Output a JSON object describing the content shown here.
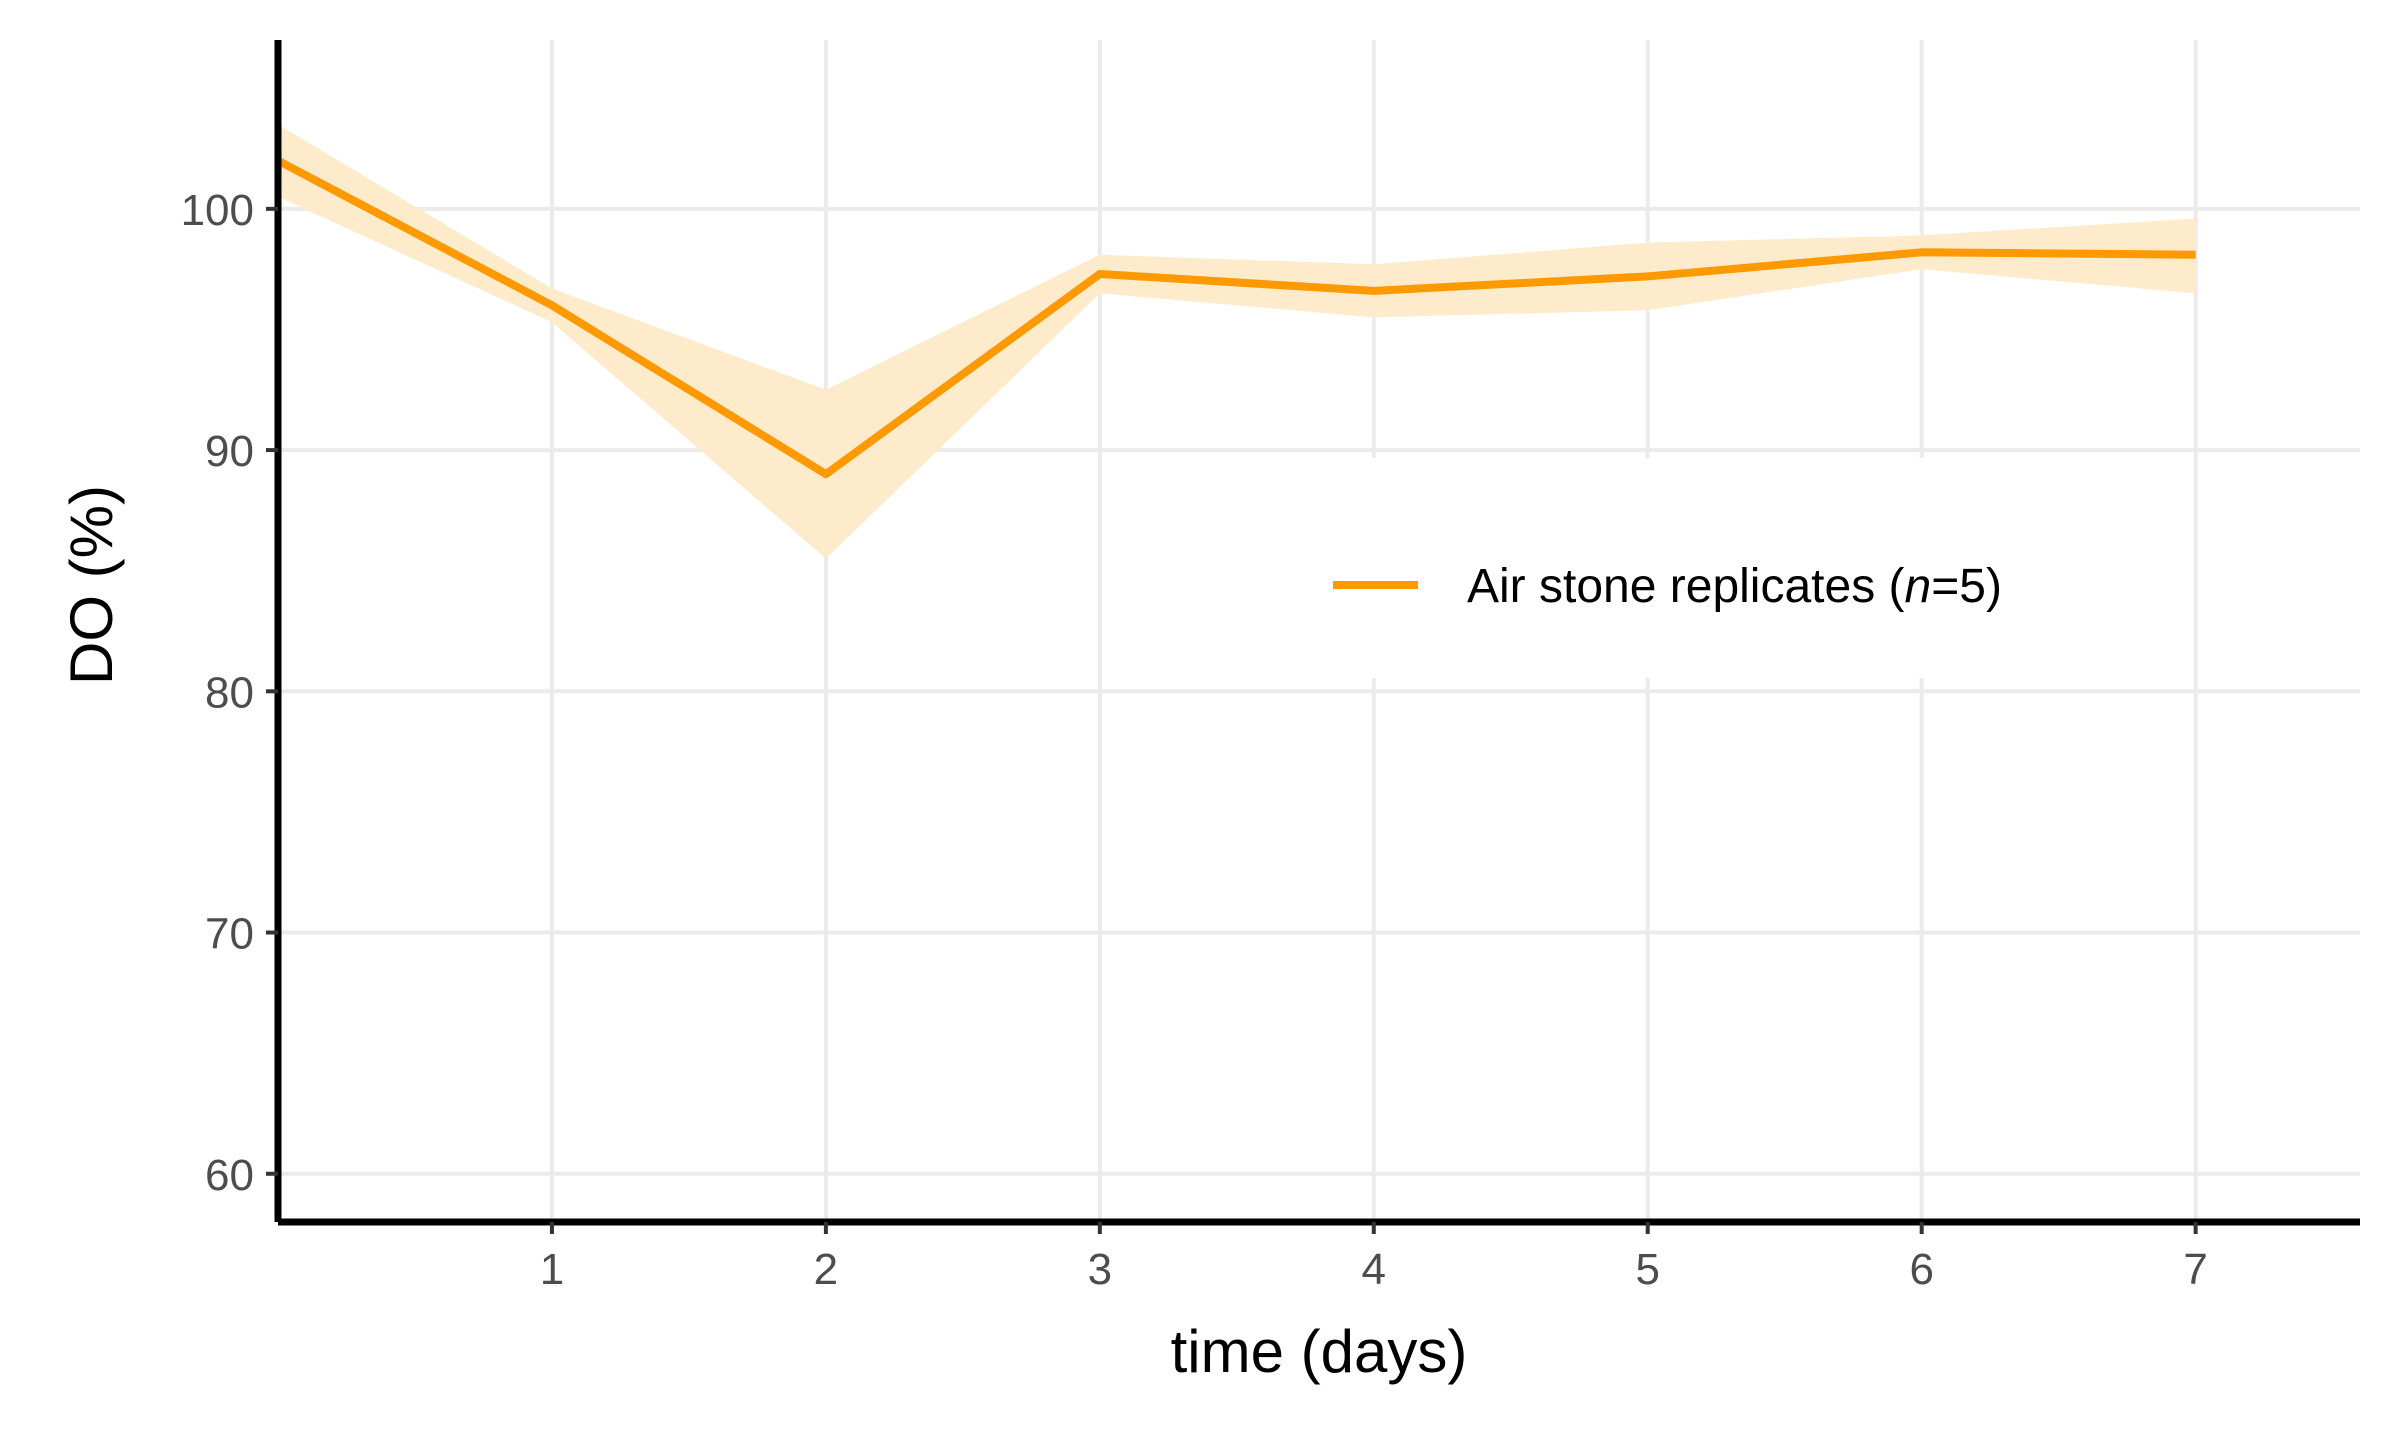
{
  "chart_data": {
    "type": "line",
    "title": "",
    "xlabel": "time (days)",
    "ylabel": "DO (%)",
    "xlim": [
      0,
      7.6
    ],
    "ylim": [
      58,
      107
    ],
    "x_ticks": [
      1,
      2,
      3,
      4,
      5,
      6,
      7
    ],
    "y_ticks": [
      60,
      70,
      80,
      90,
      100
    ],
    "grid": true,
    "legend_position": "right",
    "series": [
      {
        "name_prefix": "Air stone replicates (",
        "name_italic": "n",
        "name_suffix": "=5)",
        "color": "#FF9900",
        "ribbon_color": "#FDEBCC",
        "x": [
          0,
          1,
          2,
          3,
          4,
          5,
          6,
          7
        ],
        "y": [
          102.0,
          96.0,
          89.0,
          97.3,
          96.6,
          97.2,
          98.2,
          98.1
        ],
        "ymin": [
          100.5,
          95.3,
          85.5,
          96.5,
          95.5,
          95.8,
          97.5,
          96.5
        ],
        "ymax": [
          103.5,
          96.7,
          92.5,
          98.1,
          97.7,
          98.6,
          98.9,
          99.6
        ]
      }
    ]
  }
}
